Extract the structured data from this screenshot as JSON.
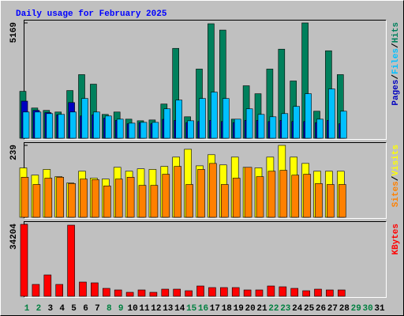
{
  "chart_data": {
    "type": "bar",
    "title": "Daily usage for February 2025",
    "separator": "/",
    "categories": [
      "1",
      "2",
      "3",
      "4",
      "5",
      "6",
      "7",
      "8",
      "9",
      "10",
      "11",
      "12",
      "13",
      "14",
      "15",
      "16",
      "17",
      "18",
      "19",
      "20",
      "21",
      "22",
      "23",
      "24",
      "25",
      "26",
      "27",
      "28",
      "29",
      "30",
      "31"
    ],
    "category_colors": [
      "#008040",
      "#008040",
      "#000000",
      "#000000",
      "#000000",
      "#000000",
      "#000000",
      "#008040",
      "#008040",
      "#000000",
      "#000000",
      "#000000",
      "#000000",
      "#000000",
      "#008040",
      "#008040",
      "#000000",
      "#000000",
      "#000000",
      "#000000",
      "#000000",
      "#008040",
      "#008040",
      "#000000",
      "#000000",
      "#000000",
      "#000000",
      "#000000",
      "#008040",
      "#008040",
      "#000000"
    ],
    "panels": [
      {
        "ylim": [
          0,
          5169
        ],
        "yticks": [
          5169
        ],
        "series": [
          {
            "name": "Hits",
            "color": "#00805c",
            "values": [
              2103,
              1355,
              1248,
              1176,
              2139,
              2852,
              2424,
              1069,
              1176,
              856,
              784,
              820,
              1533,
              4028,
              963,
              3101,
              5133,
              4848,
              856,
              2353,
              1996,
              3101,
              3993,
              2567,
              5169,
              1212,
              3921,
              2852,
              null,
              null,
              null
            ]
          },
          {
            "name": "Pages",
            "color": "#0000c0",
            "values": [
              1664,
              1250,
              1150,
              1050,
              1600,
              1000,
              1050,
              900,
              800,
              650,
              700,
              650,
              850,
              800,
              700,
              750,
              800,
              750,
              700,
              800,
              800,
              750,
              800,
              750,
              750,
              700,
              800,
              650,
              null,
              null,
              null
            ]
          },
          {
            "name": "Files",
            "color": "#00c0ff",
            "values": [
              1176,
              1176,
              1105,
              1069,
              1176,
              1782,
              1176,
              998,
              856,
              677,
              713,
              713,
              1319,
              1711,
              784,
              1782,
              2068,
              1782,
              856,
              1319,
              1069,
              963,
              1105,
              1426,
              1996,
              856,
              2210,
              1212,
              null,
              null,
              null
            ]
          }
        ],
        "legend_order": [
          1,
          2,
          0
        ]
      },
      {
        "ylim": [
          0,
          239
        ],
        "yticks": [
          239
        ],
        "series": [
          {
            "name": "Visits",
            "color": "#ffff00",
            "values": [
              164,
              140,
              159,
              135,
              114,
              153,
              130,
              127,
              166,
              153,
              161,
              159,
              169,
              200,
              226,
              171,
              208,
              174,
              200,
              166,
              164,
              200,
              239,
              200,
              179,
              153,
              153,
              153,
              null,
              null,
              null
            ]
          },
          {
            "name": "Sites",
            "color": "#ff8000",
            "values": [
              133,
              109,
              130,
              133,
              112,
              127,
              125,
              104,
              127,
              133,
              106,
              106,
              143,
              169,
              109,
              159,
              179,
              109,
              130,
              166,
              135,
              153,
              156,
              140,
              143,
              112,
              109,
              109,
              null,
              null,
              null
            ]
          }
        ],
        "legend_order": [
          1,
          0
        ]
      },
      {
        "ylim": [
          0,
          34204
        ],
        "yticks": [
          34204
        ],
        "series": [
          {
            "name": "KBytes",
            "color": "#ff0000",
            "values": [
              34204,
              5638,
              10148,
              5638,
              33828,
              6766,
              6390,
              3759,
              3007,
              1879,
              3007,
              1879,
              3383,
              3383,
              2631,
              4886,
              4135,
              4135,
              4135,
              3007,
              3007,
              4886,
              4510,
              3759,
              2631,
              3383,
              3007,
              3007,
              null,
              null,
              null
            ]
          }
        ],
        "legend_order": [
          0
        ]
      }
    ]
  }
}
